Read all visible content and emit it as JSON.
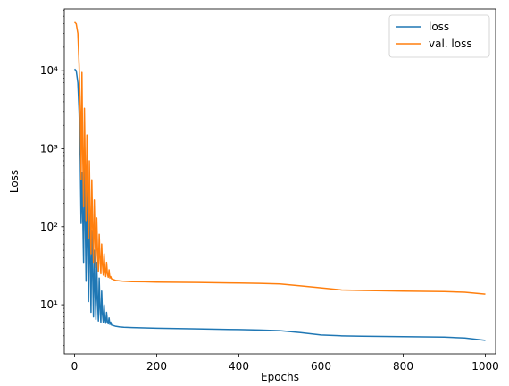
{
  "chart_data": {
    "type": "line",
    "title": "",
    "xlabel": "Epochs",
    "ylabel": "Loss",
    "xlim": [
      -25,
      1025
    ],
    "ylim": [
      2.35,
      62000
    ],
    "yscale": "log",
    "grid": false,
    "legend_position": "top-right",
    "x_ticks": [
      0,
      200,
      400,
      600,
      800,
      1000
    ],
    "x_tick_labels": [
      "0",
      "200",
      "400",
      "600",
      "800",
      "1000"
    ],
    "y_ticks": [
      10,
      100,
      1000,
      10000
    ],
    "y_tick_labels": [
      "10¹",
      "10²",
      "10³",
      "10⁴"
    ],
    "series": [
      {
        "name": "loss",
        "color": "#1f77b4",
        "x": [
          0,
          4,
          8,
          11,
          14,
          16,
          18,
          20,
          22,
          24,
          26,
          28,
          30,
          32,
          34,
          36,
          38,
          40,
          42,
          44,
          46,
          48,
          50,
          52,
          54,
          56,
          58,
          60,
          62,
          64,
          66,
          68,
          70,
          72,
          74,
          76,
          78,
          80,
          82,
          84,
          86,
          88,
          90,
          95,
          100,
          110,
          120,
          140,
          170,
          200,
          300,
          400,
          450,
          500,
          550,
          600,
          650,
          700,
          800,
          900,
          950,
          1000
        ],
        "y": [
          10500,
          10000,
          7000,
          3000,
          700,
          110,
          500,
          130,
          35,
          800,
          120,
          20,
          300,
          60,
          11,
          150,
          40,
          8,
          90,
          25,
          7,
          50,
          15,
          6.5,
          35,
          12,
          6.2,
          22,
          9,
          6.0,
          15,
          7.5,
          5.9,
          10,
          6.5,
          5.8,
          8,
          6.0,
          5.7,
          6.8,
          5.6,
          6.0,
          5.5,
          5.4,
          5.3,
          5.2,
          5.15,
          5.1,
          5.05,
          5.0,
          4.9,
          4.8,
          4.75,
          4.65,
          4.4,
          4.1,
          4.0,
          3.95,
          3.9,
          3.85,
          3.75,
          3.5
        ]
      },
      {
        "name": "val. loss",
        "color": "#ff7f0e",
        "x": [
          0,
          4,
          8,
          11,
          14,
          16,
          18,
          20,
          22,
          24,
          26,
          28,
          30,
          32,
          34,
          36,
          38,
          40,
          42,
          44,
          46,
          48,
          50,
          52,
          54,
          56,
          58,
          60,
          62,
          64,
          66,
          68,
          70,
          72,
          74,
          76,
          78,
          80,
          82,
          84,
          86,
          88,
          90,
          95,
          100,
          110,
          120,
          140,
          170,
          200,
          300,
          400,
          450,
          500,
          550,
          600,
          650,
          700,
          800,
          900,
          950,
          1000
        ],
        "y": [
          42000,
          40000,
          30000,
          12000,
          3000,
          400,
          9500,
          800,
          180,
          3300,
          600,
          120,
          1500,
          300,
          70,
          700,
          150,
          45,
          400,
          100,
          35,
          220,
          70,
          30,
          130,
          50,
          27,
          80,
          40,
          25,
          60,
          32,
          24,
          45,
          28,
          23,
          35,
          25,
          22.5,
          28,
          22,
          23,
          21.5,
          21,
          20.5,
          20.2,
          20,
          19.8,
          19.7,
          19.5,
          19.3,
          19.0,
          18.8,
          18.5,
          17.5,
          16.5,
          15.5,
          15.3,
          15.0,
          14.8,
          14.5,
          13.7
        ]
      }
    ]
  }
}
